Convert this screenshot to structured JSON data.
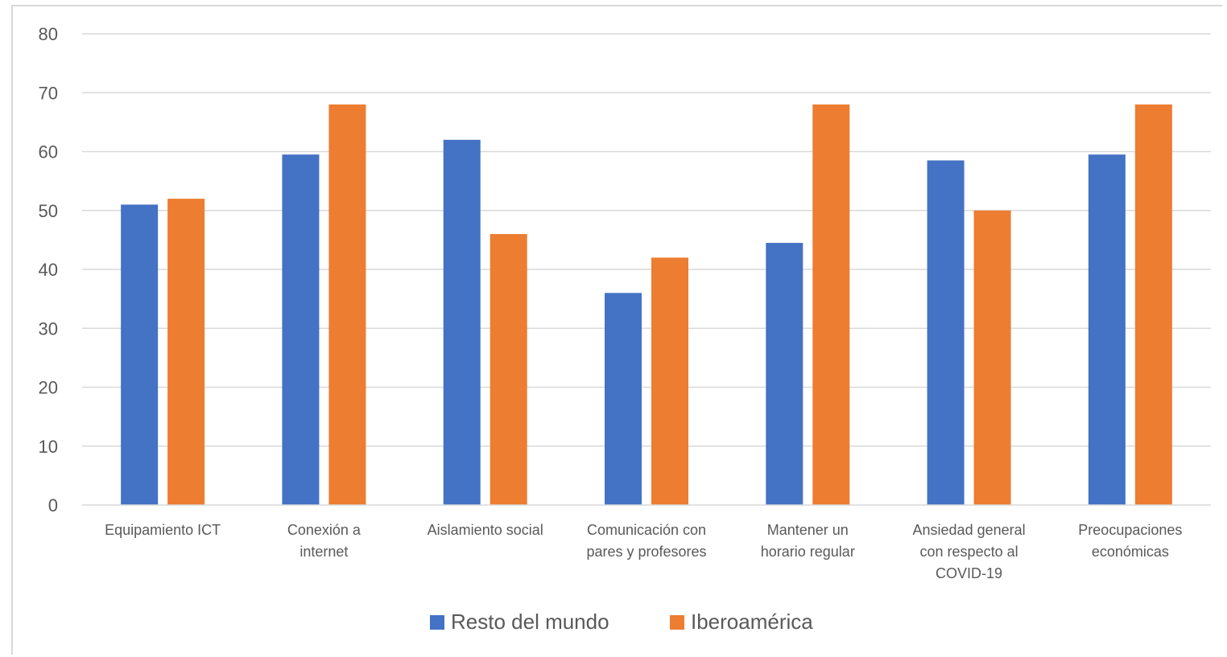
{
  "chart_data": {
    "type": "bar",
    "title": "",
    "xlabel": "",
    "ylabel": "",
    "ylim": [
      0,
      80
    ],
    "yticks": [
      0,
      10,
      20,
      30,
      40,
      50,
      60,
      70,
      80
    ],
    "grid": true,
    "legend_position": "bottom",
    "categories": [
      [
        "Equipamiento ICT"
      ],
      [
        "Conexión a",
        "internet"
      ],
      [
        "Aislamiento social"
      ],
      [
        "Comunicación con",
        "pares y profesores"
      ],
      [
        "Mantener un",
        "horario regular"
      ],
      [
        "Ansiedad general",
        "con respecto al",
        "COVID-19"
      ],
      [
        "Preocupaciones",
        "económicas"
      ]
    ],
    "series": [
      {
        "name": "Resto del mundo",
        "color": "#4472C4",
        "values": [
          51,
          59.5,
          62,
          36,
          44.5,
          58.5,
          59.5
        ]
      },
      {
        "name": "Iberoamérica",
        "color": "#ED7D31",
        "values": [
          52,
          68,
          46,
          42,
          68,
          50,
          68
        ]
      }
    ]
  }
}
